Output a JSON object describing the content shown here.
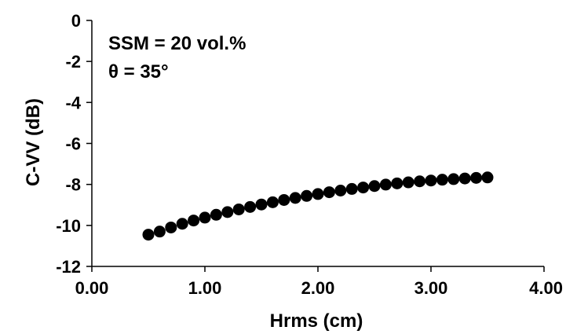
{
  "chart_data": {
    "type": "scatter",
    "title": "",
    "xlabel": "Hrms (cm)",
    "ylabel": "C-VV (dB)",
    "xlim": [
      0,
      4
    ],
    "ylim": [
      -12,
      0
    ],
    "xticks": [
      "0.00",
      "1.00",
      "2.00",
      "3.00",
      "4.00"
    ],
    "yticks": [
      "0",
      "-2",
      "-4",
      "-6",
      "-8",
      "-10",
      "-12"
    ],
    "grid": false,
    "legend": "none",
    "annotations": [
      "SSM = 20 vol.%",
      "θ = 35°"
    ],
    "marker_color": "#000000",
    "series": [
      {
        "x": [
          0.5,
          0.6,
          0.7,
          0.8,
          0.9,
          1.0,
          1.1,
          1.2,
          1.3,
          1.4,
          1.5,
          1.6,
          1.7,
          1.8,
          1.9,
          2.0,
          2.1,
          2.2,
          2.3,
          2.4,
          2.5,
          2.6,
          2.7,
          2.8,
          2.9,
          3.0,
          3.1,
          3.2,
          3.3,
          3.4,
          3.5
        ],
        "y": [
          -10.45,
          -10.3,
          -10.1,
          -9.92,
          -9.76,
          -9.62,
          -9.48,
          -9.35,
          -9.22,
          -9.1,
          -8.98,
          -8.87,
          -8.76,
          -8.66,
          -8.56,
          -8.47,
          -8.38,
          -8.3,
          -8.22,
          -8.15,
          -8.08,
          -8.01,
          -7.95,
          -7.9,
          -7.85,
          -7.81,
          -7.77,
          -7.74,
          -7.71,
          -7.68,
          -7.66
        ]
      }
    ]
  }
}
